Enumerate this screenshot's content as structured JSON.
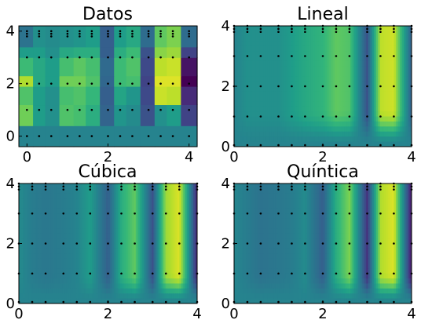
{
  "chart_data": [
    {
      "type": "heatmap",
      "title": "Datos",
      "x_ticks": [
        "0",
        "2",
        "4"
      ],
      "y_ticks": [
        "0",
        "2",
        "4"
      ],
      "x_range": [
        -0.2,
        4.2
      ],
      "y_range": [
        -0.4,
        4.2
      ],
      "x": [
        0,
        0.3,
        0.6,
        1.0,
        1.3,
        1.6,
        2.0,
        2.3,
        2.6,
        3.0,
        3.3,
        3.6,
        4.0
      ],
      "rows": [
        {
          "y_range": [
            -0.4,
            0.4
          ],
          "values": [
            0.45,
            0.45,
            0.45,
            0.45,
            0.45,
            0.45,
            0.45,
            0.45,
            0.45,
            0.45,
            0.45,
            0.45,
            0.45
          ]
        },
        {
          "y_range": [
            0.4,
            1.2
          ],
          "values": [
            0.78,
            0.55,
            0.5,
            0.72,
            0.7,
            0.62,
            0.32,
            0.52,
            0.48,
            0.25,
            0.5,
            0.55,
            0.2
          ]
        },
        {
          "y_range": [
            1.2,
            1.9
          ],
          "values": [
            0.72,
            0.55,
            0.5,
            0.7,
            0.72,
            0.66,
            0.3,
            0.58,
            0.52,
            0.22,
            0.92,
            0.9,
            0.12
          ]
        },
        {
          "y_range": [
            1.9,
            2.3
          ],
          "values": [
            0.88,
            0.6,
            0.55,
            0.78,
            0.78,
            0.72,
            0.33,
            0.68,
            0.7,
            0.2,
            0.95,
            0.95,
            0.0
          ]
        },
        {
          "y_range": [
            2.3,
            3.0
          ],
          "values": [
            0.68,
            0.6,
            0.55,
            0.7,
            0.74,
            0.7,
            0.34,
            0.68,
            0.72,
            0.22,
            0.9,
            0.92,
            0.05
          ]
        },
        {
          "y_range": [
            3.0,
            3.4
          ],
          "values": [
            0.55,
            0.55,
            0.5,
            0.6,
            0.62,
            0.62,
            0.3,
            0.62,
            0.68,
            0.25,
            0.82,
            0.85,
            0.2
          ]
        },
        {
          "y_range": [
            3.4,
            4.2
          ],
          "values": [
            0.38,
            0.5,
            0.48,
            0.5,
            0.52,
            0.55,
            0.3,
            0.55,
            0.6,
            0.35,
            0.75,
            0.8,
            0.35
          ]
        }
      ]
    },
    {
      "type": "heatmap",
      "title": "Lineal",
      "x_ticks": [
        "0",
        "2",
        "4"
      ],
      "y_ticks": [
        "0",
        "2",
        "4"
      ],
      "x_range": [
        0,
        4
      ],
      "y_range": [
        0,
        4
      ],
      "x": [
        0,
        0.3,
        0.6,
        1.0,
        1.3,
        1.6,
        2.0,
        2.3,
        2.6,
        3.0,
        3.3,
        3.6,
        4.0
      ],
      "profile": [
        0.45,
        0.5,
        0.5,
        0.5,
        0.55,
        0.6,
        0.65,
        0.75,
        0.72,
        0.25,
        0.9,
        0.93,
        0.3
      ],
      "bottom_value": 0.45,
      "fade_start_y": 1.2
    },
    {
      "type": "heatmap",
      "title": "Cúbica",
      "x_ticks": [
        "0",
        "2",
        "4"
      ],
      "y_ticks": [
        "0",
        "2",
        "4"
      ],
      "x_range": [
        0,
        4
      ],
      "y_range": [
        0,
        4
      ],
      "x": [
        0,
        0.3,
        0.6,
        1.0,
        1.3,
        1.6,
        2.0,
        2.3,
        2.6,
        3.0,
        3.3,
        3.6,
        4.0
      ],
      "profile": [
        0.48,
        0.42,
        0.4,
        0.42,
        0.45,
        0.55,
        0.3,
        0.62,
        0.75,
        0.25,
        0.85,
        0.95,
        0.1
      ],
      "bottom_value": 0.45,
      "fade_start_y": 1.0
    },
    {
      "type": "heatmap",
      "title": "Quíntica",
      "x_ticks": [
        "0",
        "2",
        "4"
      ],
      "y_ticks": [
        "0",
        "2",
        "4"
      ],
      "x_range": [
        0,
        4
      ],
      "y_range": [
        0,
        4
      ],
      "x": [
        0,
        0.3,
        0.6,
        1.0,
        1.3,
        1.6,
        2.0,
        2.3,
        2.6,
        3.0,
        3.3,
        3.6,
        4.0
      ],
      "profile": [
        0.46,
        0.42,
        0.38,
        0.4,
        0.42,
        0.48,
        0.3,
        0.62,
        0.8,
        0.15,
        0.88,
        0.95,
        0.05
      ],
      "bottom_value": 0.45,
      "fade_start_y": 1.0
    }
  ]
}
